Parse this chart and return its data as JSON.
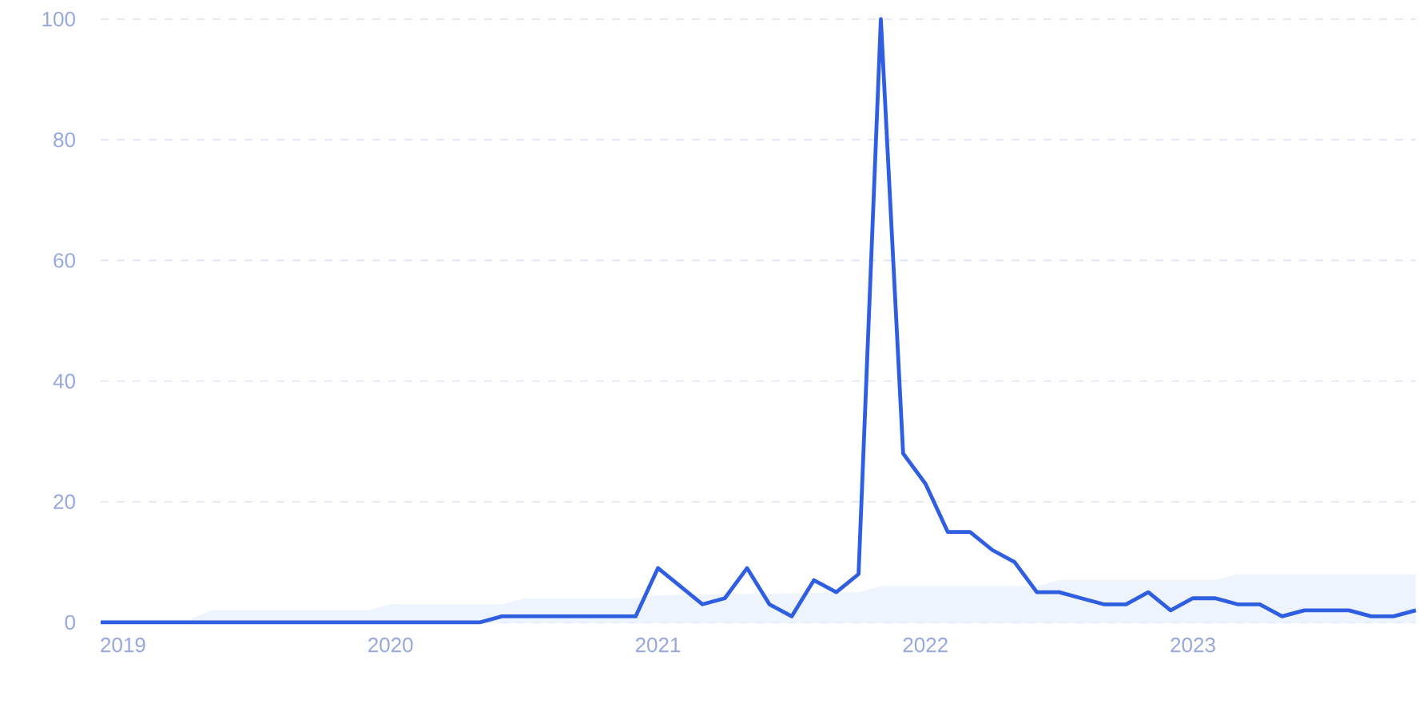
{
  "chart_data": {
    "type": "line",
    "x": [
      "2018-12",
      "2019-01",
      "2019-02",
      "2019-03",
      "2019-04",
      "2019-05",
      "2019-06",
      "2019-07",
      "2019-08",
      "2019-09",
      "2019-10",
      "2019-11",
      "2019-12",
      "2020-01",
      "2020-02",
      "2020-03",
      "2020-04",
      "2020-05",
      "2020-06",
      "2020-07",
      "2020-08",
      "2020-09",
      "2020-10",
      "2020-11",
      "2020-12",
      "2021-01",
      "2021-02",
      "2021-03",
      "2021-04",
      "2021-05",
      "2021-06",
      "2021-07",
      "2021-08",
      "2021-09",
      "2021-10",
      "2021-11",
      "2021-12",
      "2022-01",
      "2022-02",
      "2022-03",
      "2022-04",
      "2022-05",
      "2022-06",
      "2022-07",
      "2022-08",
      "2022-09",
      "2022-10",
      "2022-11",
      "2022-12",
      "2023-01",
      "2023-02",
      "2023-03",
      "2023-04",
      "2023-05",
      "2023-06",
      "2023-07",
      "2023-08",
      "2023-09",
      "2023-10",
      "2023-11"
    ],
    "series": [
      {
        "type": "area",
        "color": "#eef4fd",
        "x": [
          "2018-12",
          "2019-04",
          "2019-05",
          "2019-12",
          "2020-01",
          "2020-06",
          "2020-07",
          "2020-12",
          "2021-01",
          "2021-10",
          "2021-11",
          "2022-06",
          "2022-07",
          "2023-02",
          "2023-03",
          "2023-11"
        ],
        "values": [
          0.5,
          0.5,
          2,
          2,
          3,
          3,
          4,
          4,
          4.5,
          5,
          6,
          6,
          7,
          7,
          8,
          8
        ]
      },
      {
        "color": "#2f5fe0",
        "values": [
          0,
          0,
          0,
          0,
          0,
          0,
          0,
          0,
          0,
          0,
          0,
          0,
          0,
          0,
          0,
          0,
          0,
          0,
          1,
          1,
          1,
          1,
          1,
          1,
          1,
          9,
          6,
          3,
          4,
          9,
          3,
          1,
          7,
          5,
          8,
          100,
          28,
          23,
          15,
          15,
          12,
          10,
          5,
          5,
          4,
          3,
          3,
          5,
          2,
          4,
          4,
          3,
          3,
          1,
          2,
          2,
          2,
          1,
          1,
          2
        ]
      }
    ],
    "xlim": [
      "2018-12",
      "2023-11"
    ],
    "xticks": [
      {
        "value": "2019-01",
        "label": "2019"
      },
      {
        "value": "2020-01",
        "label": "2020"
      },
      {
        "value": "2021-01",
        "label": "2021"
      },
      {
        "value": "2022-01",
        "label": "2022"
      },
      {
        "value": "2023-01",
        "label": "2023"
      }
    ],
    "ylim": [
      0,
      100
    ],
    "yticks": [
      0,
      20,
      40,
      60,
      80,
      100
    ],
    "grid": "y",
    "legend": false,
    "marker": "none",
    "line_style": "solid"
  }
}
